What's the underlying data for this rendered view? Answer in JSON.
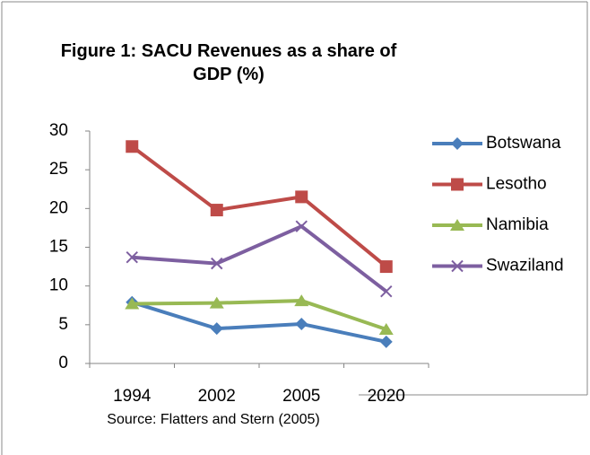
{
  "chart_data": {
    "type": "line",
    "title": "Figure 1: SACU Revenues as a share of GDP (%)",
    "categories": [
      "1994",
      "2002",
      "2005",
      "2020"
    ],
    "series": [
      {
        "name": "Botswana",
        "color": "#4a7ebb",
        "marker": "diamond",
        "values": [
          7.9,
          4.5,
          5.1,
          2.8
        ]
      },
      {
        "name": "Lesotho",
        "color": "#be4b48",
        "marker": "square",
        "values": [
          28,
          19.8,
          21.5,
          12.5
        ]
      },
      {
        "name": "Namibia",
        "color": "#98b954",
        "marker": "triangle",
        "values": [
          7.7,
          7.8,
          8.1,
          4.4
        ]
      },
      {
        "name": "Swaziland",
        "color": "#7d5fa0",
        "marker": "x",
        "values": [
          13.7,
          12.9,
          17.7,
          9.3
        ]
      }
    ],
    "ylim": [
      0,
      30
    ],
    "yticks": [
      0,
      5,
      10,
      15,
      20,
      25,
      30
    ],
    "legend": "right",
    "source": "Source: Flatters and Stern (2005)"
  }
}
